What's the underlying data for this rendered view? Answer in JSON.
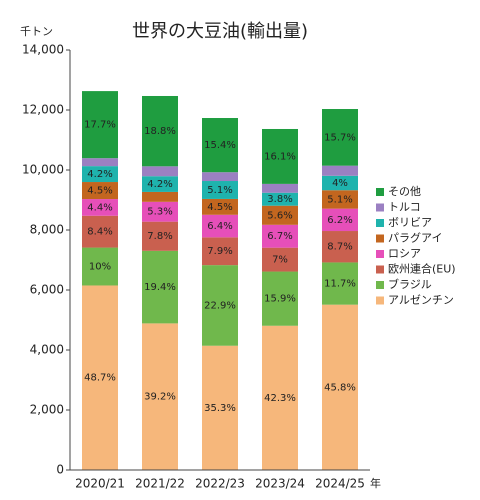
{
  "chart_data": {
    "type": "stacked_bar",
    "title": "世界の大豆油(輸出量)",
    "y_unit": "千トン",
    "x_unit": "年",
    "categories": [
      "2020/21",
      "2021/22",
      "2022/23",
      "2023/24",
      "2024/25"
    ],
    "ylim": [
      0,
      14000
    ],
    "yticks": [
      0,
      {
        "value": 2000,
        "label": "2,000"
      },
      {
        "value": 4000,
        "label": "4,000"
      },
      {
        "value": 6000,
        "label": "6,000"
      },
      {
        "value": 8000,
        "label": "8,000"
      },
      {
        "value": 10000,
        "label": "10,000"
      },
      {
        "value": 12000,
        "label": "12,000"
      },
      {
        "value": 14000,
        "label": "14,000"
      }
    ],
    "series": [
      {
        "name": "アルゼンチン",
        "color": "#f6b77b",
        "values": [
          6151,
          4887,
          4142,
          4808,
          5511
        ],
        "labels": [
          "48.7%",
          "39.2%",
          "35.3%",
          "42.3%",
          "45.8%"
        ]
      },
      {
        "name": "ブラジル",
        "color": "#70b84c",
        "values": [
          1263,
          2419,
          2687,
          1807,
          1408
        ],
        "labels": [
          "10%",
          "19.4%",
          "22.9%",
          "15.9%",
          "11.7%"
        ]
      },
      {
        "name": "欧州連合(EU)",
        "color": "#c9604f",
        "values": [
          1061,
          972,
          927,
          796,
          1047
        ],
        "labels": [
          "8.4%",
          "7.8%",
          "7.9%",
          "7%",
          "8.7%"
        ]
      },
      {
        "name": "ロシア",
        "color": "#e64fb9",
        "values": [
          556,
          661,
          751,
          762,
          746
        ],
        "labels": [
          "4.4%",
          "5.3%",
          "6.4%",
          "6.7%",
          "6.2%"
        ]
      },
      {
        "name": "パラグアイ",
        "color": "#c3661f",
        "values": [
          568,
          330,
          528,
          637,
          614
        ],
        "labels": [
          "4.5%",
          null,
          "4.5%",
          "5.6%",
          "5.1%"
        ]
      },
      {
        "name": "ボリビア",
        "color": "#1fb3ad",
        "values": [
          530,
          524,
          598,
          432,
          481
        ],
        "labels": [
          "4.2%",
          "4.2%",
          "5.1%",
          "3.8%",
          "4%"
        ]
      },
      {
        "name": "トルコ",
        "color": "#9b80c2",
        "values": [
          265,
          330,
          293,
          295,
          337
        ]
      },
      {
        "name": "その他",
        "color": "#1f9d40",
        "values": [
          2236,
          2344,
          1807,
          1830,
          1889
        ],
        "labels": [
          "17.7%",
          "18.8%",
          "15.4%",
          "16.1%",
          "15.7%"
        ]
      }
    ]
  }
}
